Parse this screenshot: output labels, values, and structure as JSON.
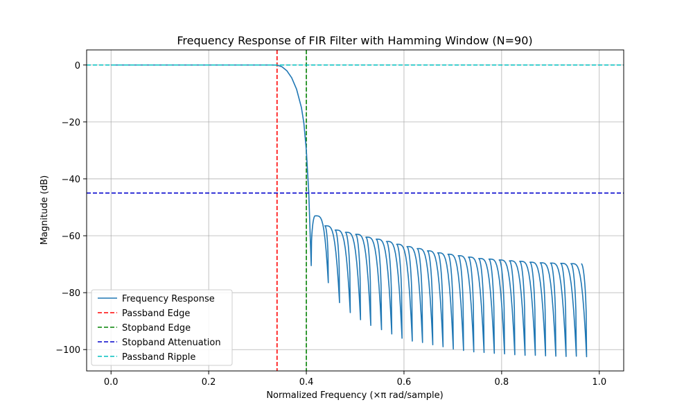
{
  "chart_data": {
    "type": "line",
    "title": "Frequency Response of FIR Filter with Hamming Window (N=90)",
    "xlabel": "Normalized Frequency (×π rad/sample)",
    "ylabel": "Magnitude (dB)",
    "xlim": [
      -0.05,
      1.05
    ],
    "ylim": [
      -107.5,
      5.3
    ],
    "xticks": [
      0.0,
      0.2,
      0.4,
      0.6,
      0.8,
      1.0
    ],
    "xtick_labels": [
      "0.0",
      "0.2",
      "0.4",
      "0.6",
      "0.8",
      "1.0"
    ],
    "yticks": [
      0,
      -20,
      -40,
      -60,
      -80,
      -100
    ],
    "ytick_labels": [
      "0",
      "−20",
      "−40",
      "−60",
      "−80",
      "−100"
    ],
    "grid": true,
    "legend_position": "lower-left",
    "response": {
      "name": "Frequency Response",
      "color": "#1f77b4",
      "passband_points": [
        [
          0.0,
          0.0
        ],
        [
          0.3,
          0.0
        ],
        [
          0.33,
          0.0
        ],
        [
          0.34,
          -0.05
        ],
        [
          0.35,
          -0.6
        ],
        [
          0.36,
          -2.0
        ],
        [
          0.37,
          -4.5
        ],
        [
          0.38,
          -8.5
        ],
        [
          0.39,
          -15.0
        ],
        [
          0.395,
          -20.5
        ],
        [
          0.4,
          -30.0
        ],
        [
          0.405,
          -45.0
        ],
        [
          0.41,
          -70.5
        ]
      ],
      "lobe_peaks": [
        [
          0.418,
          -53.0
        ],
        [
          0.438,
          -56.5
        ],
        [
          0.459,
          -58.0
        ],
        [
          0.48,
          -58.8
        ],
        [
          0.501,
          -59.5
        ],
        [
          0.522,
          -60.5
        ],
        [
          0.543,
          -61.2
        ],
        [
          0.564,
          -62.0
        ],
        [
          0.585,
          -63.0
        ],
        [
          0.606,
          -63.8
        ],
        [
          0.627,
          -64.5
        ],
        [
          0.648,
          -65.3
        ],
        [
          0.669,
          -66.0
        ],
        [
          0.69,
          -66.5
        ],
        [
          0.711,
          -67.0
        ],
        [
          0.732,
          -67.5
        ],
        [
          0.753,
          -68.0
        ],
        [
          0.774,
          -68.2
        ],
        [
          0.795,
          -68.5
        ],
        [
          0.816,
          -68.8
        ],
        [
          0.837,
          -69.0
        ],
        [
          0.858,
          -69.3
        ],
        [
          0.879,
          -69.5
        ],
        [
          0.9,
          -69.6
        ],
        [
          0.921,
          -69.7
        ],
        [
          0.942,
          -69.8
        ],
        [
          0.963,
          -69.8
        ],
        [
          0.984,
          -69.8
        ],
        [
          1.0,
          -69.6
        ]
      ],
      "nulls": [
        [
          0.41,
          -70.5
        ],
        [
          0.445,
          -76.5
        ],
        [
          0.468,
          -83.5
        ],
        [
          0.49,
          -87.0
        ],
        [
          0.511,
          -89.5
        ],
        [
          0.532,
          -91.5
        ],
        [
          0.554,
          -93.0
        ],
        [
          0.575,
          -94.5
        ],
        [
          0.596,
          -96.0
        ],
        [
          0.617,
          -97.0
        ],
        [
          0.638,
          -97.5
        ],
        [
          0.659,
          -98.3
        ],
        [
          0.68,
          -99.0
        ],
        [
          0.701,
          -99.8
        ],
        [
          0.722,
          -100.3
        ],
        [
          0.743,
          -100.8
        ],
        [
          0.764,
          -101.0
        ],
        [
          0.785,
          -101.3
        ],
        [
          0.806,
          -101.5
        ],
        [
          0.827,
          -101.8
        ],
        [
          0.848,
          -102.0
        ],
        [
          0.869,
          -102.0
        ],
        [
          0.89,
          -102.2
        ],
        [
          0.911,
          -102.3
        ],
        [
          0.932,
          -102.4
        ],
        [
          0.953,
          -102.3
        ],
        [
          0.974,
          -102.5
        ]
      ]
    },
    "vlines": [
      {
        "name": "Passband Edge",
        "x": 0.34,
        "color": "#ff0000"
      },
      {
        "name": "Stopband Edge",
        "x": 0.4,
        "color": "#008000"
      }
    ],
    "hlines": [
      {
        "name": "Stopband Attenuation",
        "y": -45,
        "color": "#0000cc"
      },
      {
        "name": "Passband Ripple",
        "y": 0,
        "color": "#00bfbf"
      }
    ],
    "legend": [
      {
        "label": "Frequency Response",
        "color": "#1f77b4",
        "dashed": false
      },
      {
        "label": "Passband Edge",
        "color": "#ff0000",
        "dashed": true
      },
      {
        "label": "Stopband Edge",
        "color": "#008000",
        "dashed": true
      },
      {
        "label": "Stopband Attenuation",
        "color": "#0000cc",
        "dashed": true
      },
      {
        "label": "Passband Ripple",
        "color": "#00bfbf",
        "dashed": true
      }
    ]
  }
}
